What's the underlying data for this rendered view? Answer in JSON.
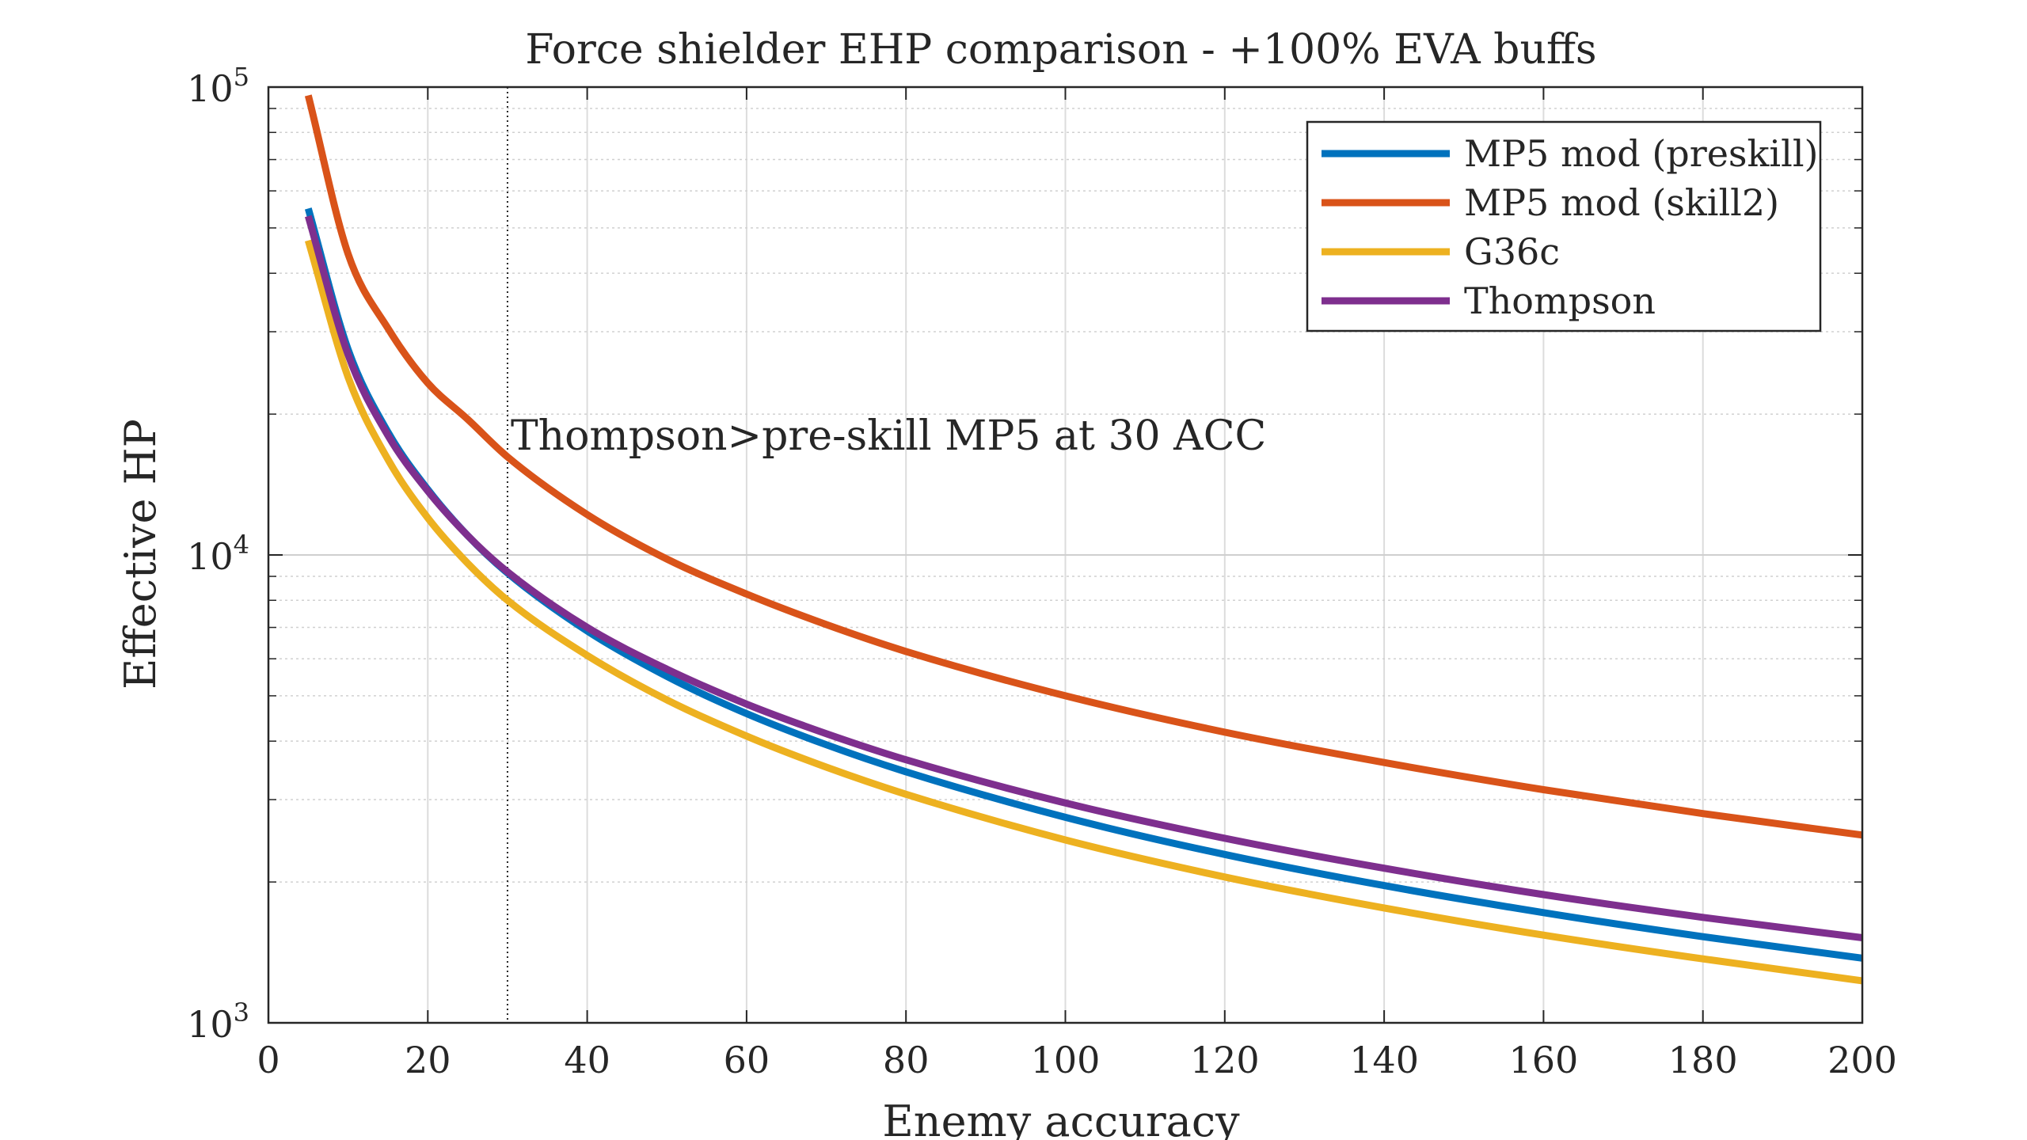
{
  "chart_data": {
    "type": "line",
    "title": "Force shielder EHP comparison - +100% EVA buffs",
    "xlabel": "Enemy accuracy",
    "ylabel": "Effective HP",
    "xlim": [
      0,
      200
    ],
    "ylim": [
      1000,
      100000
    ],
    "yscale": "log",
    "grid": true,
    "legend_position": "top-right",
    "x_ticks": [
      "0",
      "20",
      "40",
      "60",
      "80",
      "100",
      "120",
      "140",
      "160",
      "180",
      "200"
    ],
    "y_ticks": [
      {
        "base": "10",
        "exp": "3"
      },
      {
        "base": "10",
        "exp": "4"
      },
      {
        "base": "10",
        "exp": "5"
      }
    ],
    "annotation": {
      "text": "Thompson>pre-skill MP5 at 30 ACC",
      "x": 30
    },
    "x": [
      5,
      10,
      15,
      20,
      25,
      30,
      40,
      50,
      60,
      70,
      80,
      100,
      120,
      140,
      160,
      180,
      200
    ],
    "series": [
      {
        "name": "MP5 mod (preskill)",
        "color": "#0072BD",
        "values": [
          55000,
          27500,
          18300,
          13800,
          11000,
          9150,
          6880,
          5500,
          4580,
          3930,
          3440,
          2750,
          2290,
          1965,
          1720,
          1528,
          1375
        ]
      },
      {
        "name": "MP5 mod (skill2)",
        "color": "#D95319",
        "values": [
          96000,
          44000,
          30500,
          23300,
          19500,
          16200,
          12200,
          9800,
          8250,
          7100,
          6220,
          5000,
          4180,
          3600,
          3150,
          2800,
          2520
        ]
      },
      {
        "name": "G36c",
        "color": "#EDB120",
        "values": [
          47000,
          24000,
          16000,
          12000,
          9600,
          8000,
          6100,
          4900,
          4100,
          3520,
          3080,
          2460,
          2050,
          1760,
          1540,
          1370,
          1230
        ]
      },
      {
        "name": "Thompson",
        "color": "#7E2F8E",
        "values": [
          53000,
          26800,
          18000,
          13700,
          11000,
          9200,
          7000,
          5700,
          4800,
          4150,
          3650,
          2950,
          2480,
          2140,
          1880,
          1680,
          1520
        ]
      }
    ]
  }
}
